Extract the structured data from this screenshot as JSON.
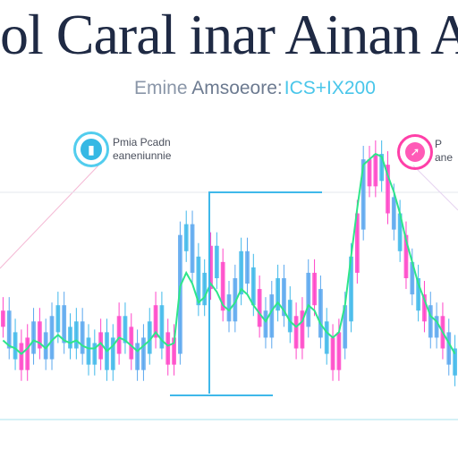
{
  "header": {
    "title": "ol Caral inar Ainan A",
    "subtitle_part1": "Emine ",
    "subtitle_part2": "Amsoeore:",
    "subtitle_part3": "ICS+IX200"
  },
  "badges": {
    "left": {
      "icon": "chart-icon",
      "line1": "Pmia Pcadn",
      "line2": "eaneniunnie"
    },
    "right": {
      "icon": "arrow-icon",
      "line1": "P",
      "line2": "ane"
    }
  },
  "colors": {
    "cyan": "#3fb8ea",
    "pink": "#ff45c8",
    "green": "#2ee68a",
    "blue": "#5aa7ee"
  },
  "chart_data": {
    "type": "bar",
    "title": "",
    "xlabel": "",
    "ylabel": "",
    "ylim": [
      0,
      100
    ],
    "series": [
      {
        "values": [
          38,
          30,
          26,
          22,
          28,
          34,
          30,
          26,
          36,
          40,
          32,
          30,
          34,
          28,
          24,
          26,
          30,
          22,
          28,
          36,
          32,
          26,
          22,
          28,
          34,
          40,
          30,
          24,
          28,
          66,
          70,
          58,
          46,
          52,
          62,
          56,
          44,
          40,
          50,
          60,
          54,
          46,
          38,
          34,
          44,
          50,
          42,
          36,
          30,
          38,
          52,
          46,
          34,
          28,
          22,
          30,
          40,
          58,
          74,
          94,
          90,
          96,
          92,
          80,
          74,
          66,
          56,
          50,
          44,
          40,
          34,
          36,
          30,
          24,
          20
        ]
      }
    ],
    "overlay_line": [
      27,
      25,
      24,
      22,
      24,
      27,
      26,
      24,
      27,
      29,
      27,
      26,
      27,
      25,
      24,
      24,
      26,
      23,
      25,
      28,
      27,
      25,
      23,
      25,
      27,
      30,
      27,
      25,
      26,
      47,
      52,
      48,
      41,
      43,
      48,
      45,
      40,
      38,
      41,
      46,
      44,
      40,
      37,
      34,
      38,
      41,
      38,
      34,
      32,
      34,
      40,
      38,
      33,
      30,
      28,
      30,
      40,
      58,
      76,
      92,
      94,
      96,
      95,
      88,
      82,
      74,
      64,
      56,
      48,
      42,
      36,
      34,
      30,
      26,
      22
    ]
  }
}
